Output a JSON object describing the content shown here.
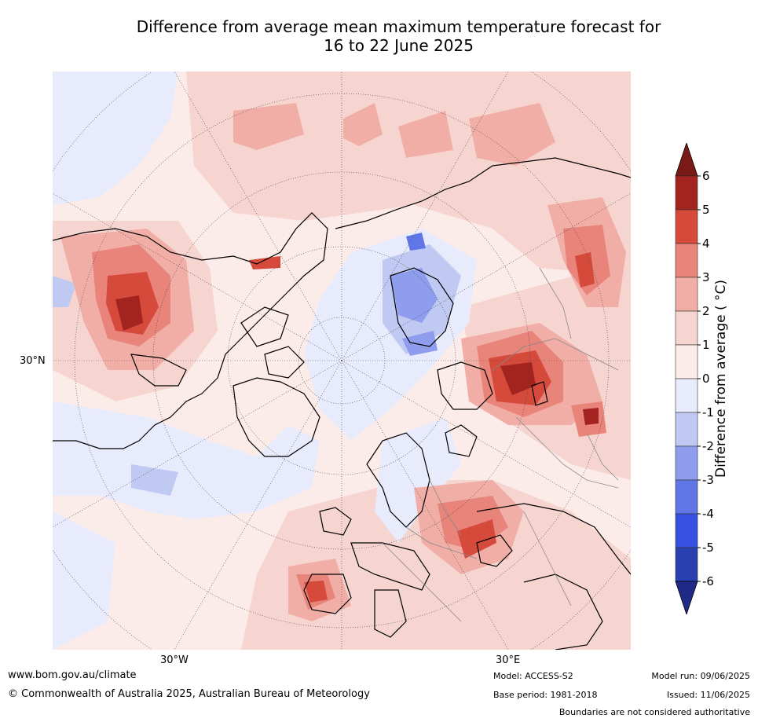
{
  "title_line1": "Difference from average mean maximum temperature forecast for",
  "title_line2": "16 to 22 June 2025",
  "lat_label": "30°N",
  "lon_labels": [
    "30°W",
    "30°E"
  ],
  "colorbar": {
    "label": "Difference from average ( °C)",
    "ticks": [
      "6",
      "5",
      "4",
      "3",
      "2",
      "1",
      "0",
      "-1",
      "-2",
      "-3",
      "-4",
      "-5",
      "-6"
    ],
    "colors": [
      "#a3231f",
      "#d64a3c",
      "#e8847a",
      "#f0aea6",
      "#f6d5d0",
      "#fcece9",
      "#e8ebfb",
      "#c0c9f2",
      "#8e9ded",
      "#6176e6",
      "#3650df",
      "#2a3fb0"
    ],
    "over_color": "#7a1a16",
    "under_color": "#1e2a85"
  },
  "footer": {
    "website": "www.bom.gov.au/climate",
    "copyright": "© Commonwealth of Australia 2025, Australian Bureau of Meteorology",
    "model": "Model: ACCESS-S2",
    "base_period": "Base period: 1981-2018",
    "model_run": "Model run: 09/06/2025",
    "issued": "Issued: 11/06/2025",
    "disclaimer": "Boundaries are not considered authoritative"
  }
}
